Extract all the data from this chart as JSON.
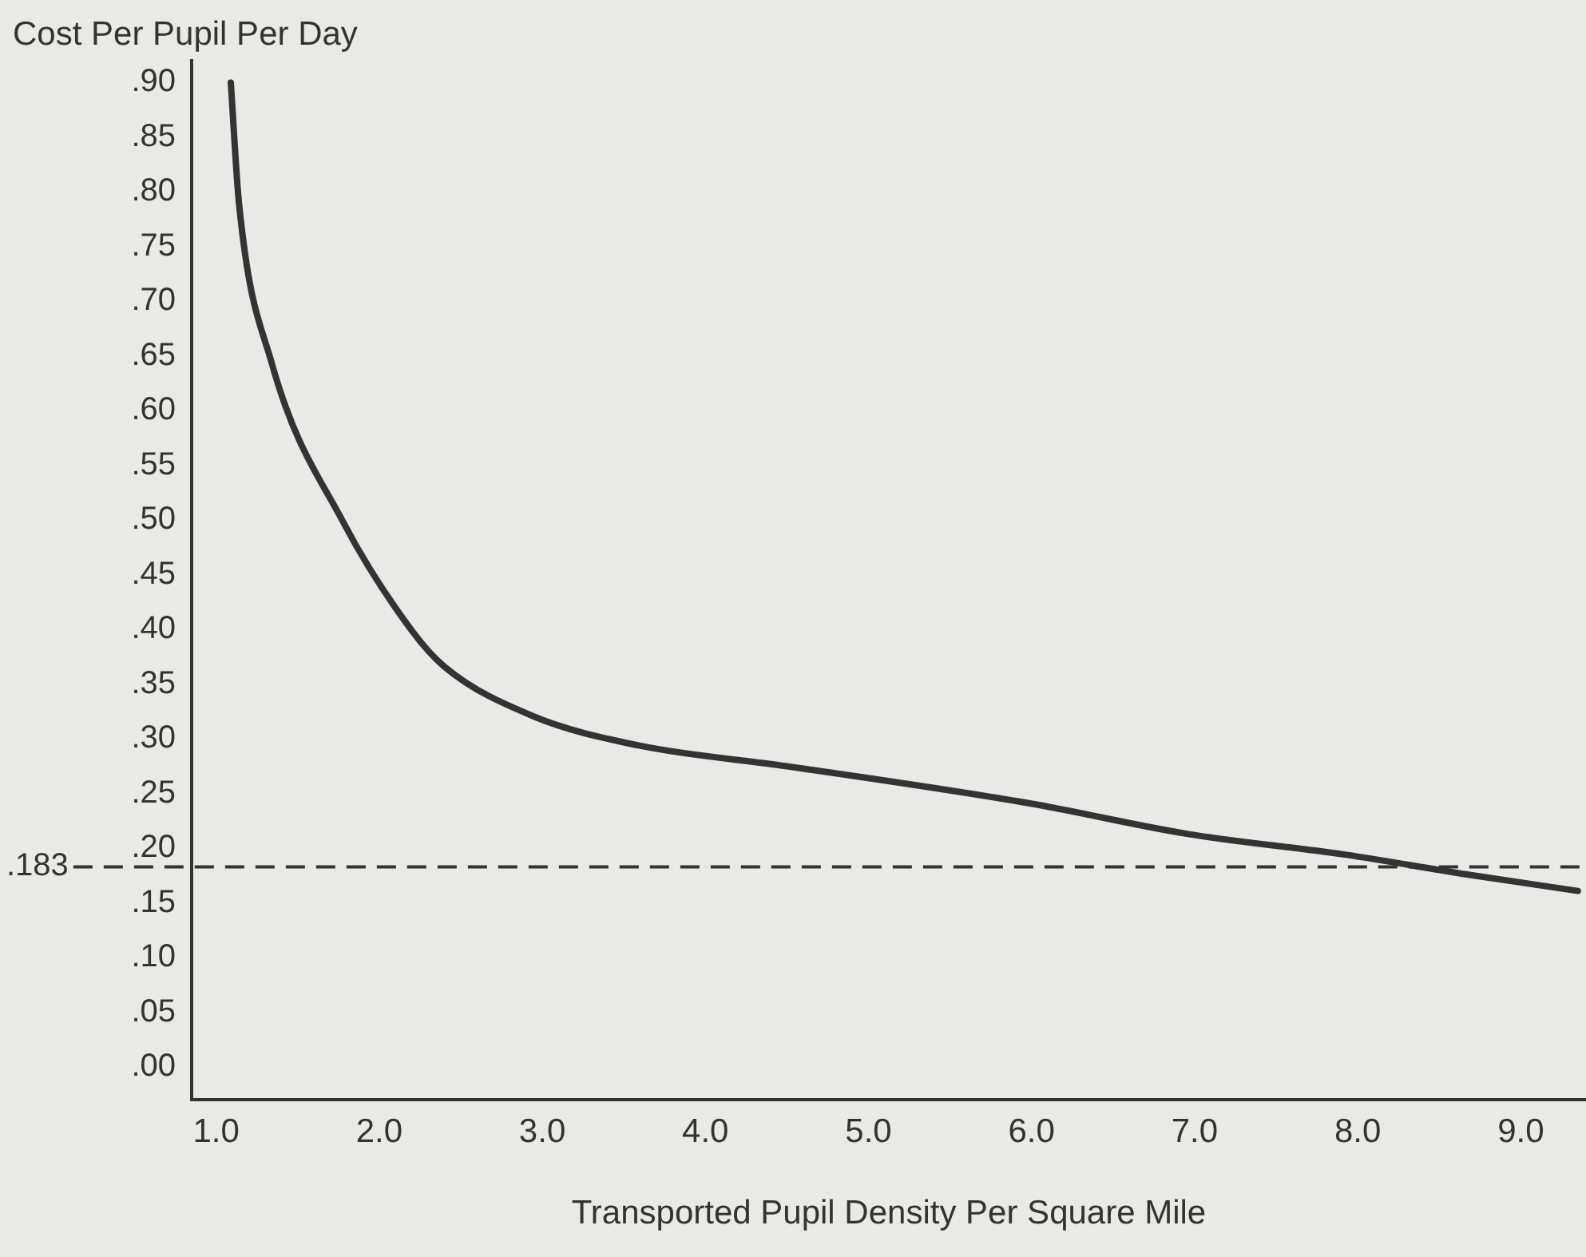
{
  "chart_data": {
    "type": "line",
    "ylabel": "Cost Per Pupil Per Day",
    "xlabel": "Transported Pupil Density Per Square Mile",
    "x": [
      1.09,
      1.14,
      1.34,
      1.78,
      2.2,
      2.4,
      2.94,
      3.59,
      4.5,
      5.99,
      6.96,
      7.93,
      8.67,
      9.35
    ],
    "series": [
      {
        "color": "#333333",
        "values": [
          0.9,
          0.79,
          0.644,
          0.498,
          0.399,
          0.366,
          0.321,
          0.294,
          0.275,
          0.241,
          0.213,
          0.194,
          0.176,
          0.161
        ]
      }
    ],
    "xlim": [
      0.85,
      9.4
    ],
    "ylim": [
      -0.03,
      0.92
    ],
    "xticks": [
      {
        "value": 1,
        "label": "1.0"
      },
      {
        "value": 2,
        "label": "2.0"
      },
      {
        "value": 3,
        "label": "3.0"
      },
      {
        "value": 4,
        "label": "4.0"
      },
      {
        "value": 5,
        "label": "5.0"
      },
      {
        "value": 6,
        "label": "6.0"
      },
      {
        "value": 7,
        "label": "7.0"
      },
      {
        "value": 8,
        "label": "8.0"
      },
      {
        "value": 9,
        "label": "9.0"
      }
    ],
    "yticks": [
      {
        "value": 0,
        "label": ".00"
      },
      {
        "value": 0.05,
        "label": ".05"
      },
      {
        "value": 0.1,
        "label": ".10"
      },
      {
        "value": 0.15,
        "label": ".15"
      },
      {
        "value": 0.2,
        "label": ".20"
      },
      {
        "value": 0.25,
        "label": ".25"
      },
      {
        "value": 0.3,
        "label": ".30"
      },
      {
        "value": 0.35,
        "label": ".35"
      },
      {
        "value": 0.4,
        "label": ".40"
      },
      {
        "value": 0.45,
        "label": ".45"
      },
      {
        "value": 0.5,
        "label": ".50"
      },
      {
        "value": 0.55,
        "label": ".55"
      },
      {
        "value": 0.6,
        "label": ".60"
      },
      {
        "value": 0.65,
        "label": ".65"
      },
      {
        "value": 0.7,
        "label": ".70"
      },
      {
        "value": 0.75,
        "label": ".75"
      },
      {
        "value": 0.8,
        "label": ".80"
      },
      {
        "value": 0.85,
        "label": ".85"
      },
      {
        "value": 0.9,
        "label": ".90"
      }
    ],
    "ref_lines": [
      {
        "axis": "y",
        "value": 0.183,
        "label": ".183",
        "line_style": "dashed"
      }
    ],
    "grid": false,
    "legend": false,
    "marker": "none",
    "line_style": "solid"
  }
}
